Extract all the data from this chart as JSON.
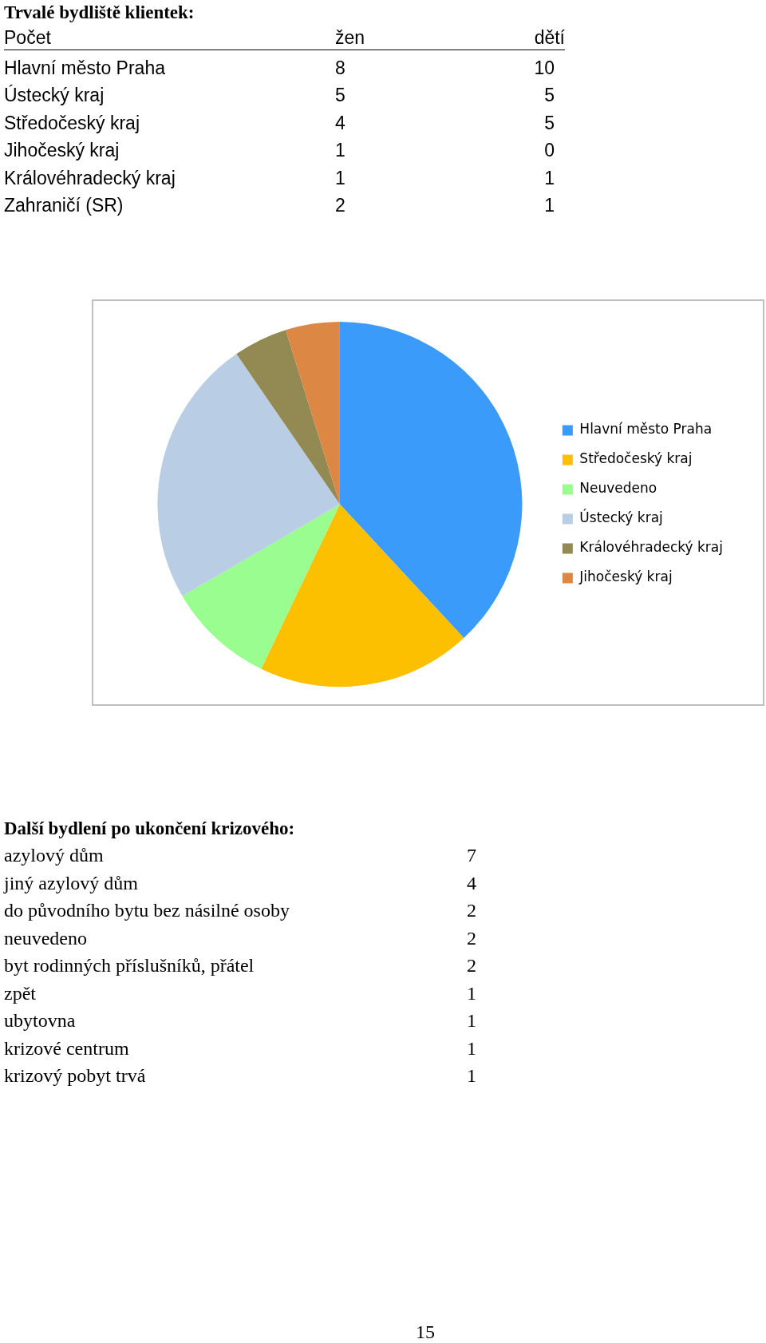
{
  "chart_data": [
    {
      "type": "other",
      "title": "Trvalé bydliště klientek:",
      "ylabel": "Počet",
      "categories": [
        "Hlavní město Praha",
        "Ústecký kraj",
        "Středočeský kraj",
        "Jihočeský kraj",
        "Královéhradecký kraj",
        "Zahraničí (SR)"
      ],
      "series": [
        {
          "name": "žen",
          "values": [
            8,
            5,
            4,
            1,
            1,
            2
          ]
        },
        {
          "name": "dětí",
          "values": [
            10,
            5,
            5,
            0,
            1,
            1
          ]
        }
      ],
      "data_labels": true
    },
    {
      "type": "pie",
      "categories": [
        "Hlavní město Praha",
        "Středočeský kraj",
        "Neuvedeno",
        "Ústecký kraj",
        "Královéhradecký kraj",
        "Jihočeský kraj"
      ],
      "values": [
        38.1,
        19.0,
        9.5,
        23.8,
        4.8,
        4.8
      ],
      "colors": [
        "#3a9bfb",
        "#fdc000",
        "#99fd8f",
        "#b9cde4",
        "#938953",
        "#dd8744"
      ],
      "legend": "right"
    },
    {
      "type": "other",
      "title": "Další bydlení po ukončení krizového:",
      "categories": [
        "azylový dům",
        "jiný azylový dům",
        "do původního bytu bez násilné osoby",
        "neuvedeno",
        "byt rodinných příslušníků, přátel",
        "zpět",
        "ubytovna",
        "krizové centrum",
        "krizový pobyt trvá"
      ],
      "values": [
        7,
        4,
        2,
        2,
        2,
        1,
        1,
        1,
        1
      ],
      "data_labels": true,
      "annotations": [
        "15"
      ]
    }
  ]
}
